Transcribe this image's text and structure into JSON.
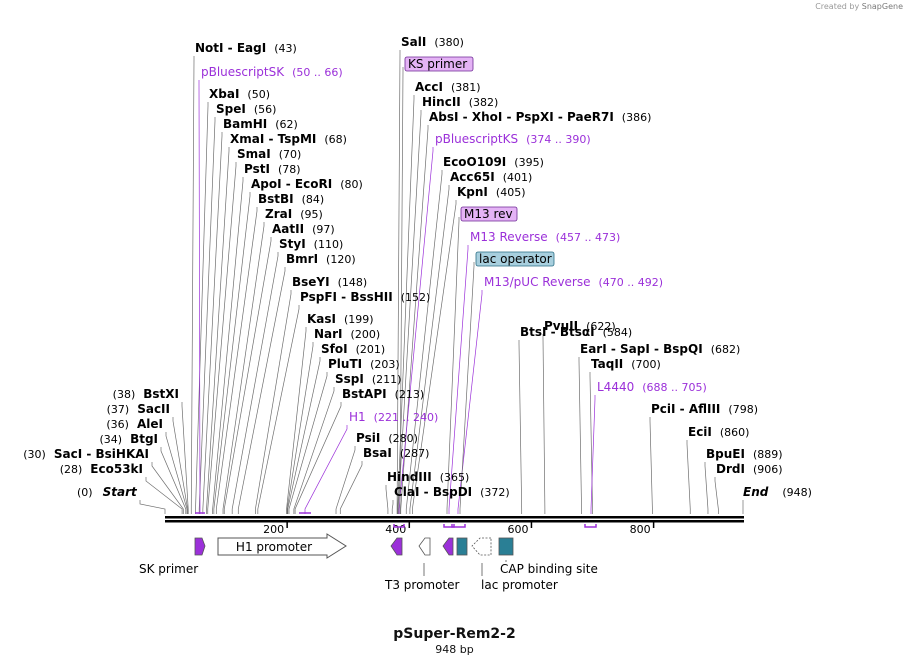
{
  "credit": {
    "prefix": "Created by",
    "brand": "SnapGene"
  },
  "title": "pSuper-Rem2-2",
  "length_label": "948 bp",
  "sequence_length": 948,
  "colors": {
    "primer": "#9b30d9",
    "backbone": "#000000",
    "feature_teal": "#2a7f95"
  },
  "ticks": [
    "200",
    "400",
    "600",
    "800"
  ],
  "ends": {
    "start": "Start",
    "start_pos": "(0)",
    "end": "End",
    "end_pos": "(948)"
  },
  "left_sites": [
    {
      "name": "BstXI",
      "pos": "(38)"
    },
    {
      "name": "SacII",
      "pos": "(37)"
    },
    {
      "name": "AleI",
      "pos": "(36)"
    },
    {
      "name": "BtgI",
      "pos": "(34)"
    },
    {
      "name": "SacI  -  BsiHKAI",
      "pos": "(30)"
    },
    {
      "name": "Eco53kI",
      "pos": "(28)"
    }
  ],
  "sites": [
    {
      "name": "NotI  -  EagI",
      "pos": "(43)"
    },
    {
      "name": "XbaI",
      "pos": "(50)"
    },
    {
      "name": "SpeI",
      "pos": "(56)"
    },
    {
      "name": "BamHI",
      "pos": "(62)"
    },
    {
      "name": "XmaI  -  TspMI",
      "pos": "(68)"
    },
    {
      "name": "SmaI",
      "pos": "(70)"
    },
    {
      "name": "PstI",
      "pos": "(78)"
    },
    {
      "name": "ApoI  -  EcoRI",
      "pos": "(80)"
    },
    {
      "name": "BstBI",
      "pos": "(84)"
    },
    {
      "name": "ZraI",
      "pos": "(95)"
    },
    {
      "name": "AatII",
      "pos": "(97)"
    },
    {
      "name": "StyI",
      "pos": "(110)"
    },
    {
      "name": "BmrI",
      "pos": "(120)"
    },
    {
      "name": "BseYI",
      "pos": "(148)"
    },
    {
      "name": "PspFI  -  BssHII",
      "pos": "(152)"
    },
    {
      "name": "KasI",
      "pos": "(199)"
    },
    {
      "name": "NarI",
      "pos": "(200)"
    },
    {
      "name": "SfoI",
      "pos": "(201)"
    },
    {
      "name": "PluTI",
      "pos": "(203)"
    },
    {
      "name": "SspI",
      "pos": "(211)"
    },
    {
      "name": "BstAPI",
      "pos": "(213)"
    },
    {
      "name": "PsiI",
      "pos": "(280)"
    },
    {
      "name": "BsaI",
      "pos": "(287)"
    },
    {
      "name": "HindIII",
      "pos": "(365)"
    },
    {
      "name": "ClaI  -  BspDI",
      "pos": "(372)"
    },
    {
      "name": "SalI",
      "pos": "(380)"
    },
    {
      "name": "AccI",
      "pos": "(381)"
    },
    {
      "name": "HincII",
      "pos": "(382)"
    },
    {
      "name": "AbsI  -  XhoI  -  PspXI  -  PaeR7I",
      "pos": "(386)"
    },
    {
      "name": "EcoO109I",
      "pos": "(395)"
    },
    {
      "name": "Acc65I",
      "pos": "(401)"
    },
    {
      "name": "KpnI",
      "pos": "(405)"
    },
    {
      "name": "BtsI  -  BtsαI",
      "pos": "(584)"
    },
    {
      "name": "PvuII",
      "pos": "(622)"
    },
    {
      "name": "EarI  -  SapI  -  BspQI",
      "pos": "(682)"
    },
    {
      "name": "TaqII",
      "pos": "(700)"
    },
    {
      "name": "PciI  -  AflIII",
      "pos": "(798)"
    },
    {
      "name": "EciI",
      "pos": "(860)"
    },
    {
      "name": "BpuEI",
      "pos": "(889)"
    },
    {
      "name": "DrdI",
      "pos": "(906)"
    }
  ],
  "primers": [
    {
      "name": "pBluescriptSK",
      "range": "(50 .. 66)"
    },
    {
      "name": "pBluescriptKS",
      "range": "(374 .. 390)"
    },
    {
      "name": "M13 Reverse",
      "range": "(457 .. 473)"
    },
    {
      "name": "M13/pUC Reverse",
      "range": "(470 .. 492)"
    },
    {
      "name": "H1",
      "range": "(221 .. 240)"
    },
    {
      "name": "L4440",
      "range": "(688 .. 705)"
    }
  ],
  "boxed_labels": [
    "KS primer",
    "M13 rev",
    "lac operator"
  ],
  "features": {
    "h1_promoter": "H1 promoter",
    "sk_primer": "SK primer",
    "t3_promoter": "T3 promoter",
    "lac_promoter": "lac promoter",
    "cap_site": "CAP binding site"
  }
}
